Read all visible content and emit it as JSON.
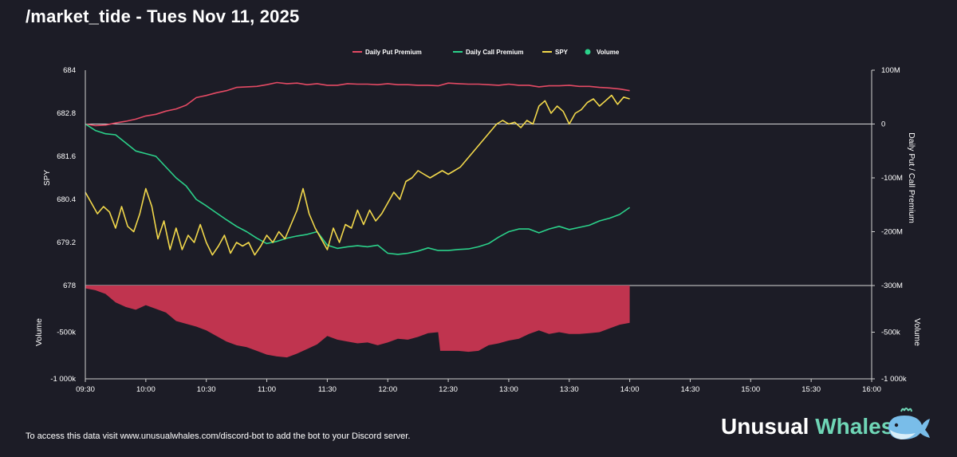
{
  "header": {
    "title": "/market_tide - Tues Nov 11, 2025"
  },
  "footer": {
    "text": "To access this data visit www.unusualwhales.com/discord-bot to add the bot to your Discord server."
  },
  "brand": {
    "word1": "Unusual",
    "word2": "Whales",
    "logo_icon": "whale-icon"
  },
  "colors": {
    "background": "#1c1c26",
    "put": "#e44a64",
    "call": "#2bd18a",
    "spy": "#f2d84b",
    "volume": "#c0344f",
    "zero_line": "#d7d7d7"
  },
  "chart_data": {
    "type": "line",
    "legend": {
      "placement": "top-center",
      "entries": [
        "Daily Put Premium",
        "Daily Call Premium",
        "SPY",
        "Volume"
      ]
    },
    "x_axis": {
      "range": [
        "09:30",
        "16:00"
      ],
      "ticks": [
        "09:30",
        "10:00",
        "10:30",
        "11:00",
        "11:30",
        "12:00",
        "12:30",
        "13:00",
        "13:30",
        "14:00",
        "14:30",
        "15:00",
        "15:30",
        "16:00"
      ]
    },
    "price_axis": {
      "label": "SPY",
      "range": [
        678,
        684
      ],
      "ticks": [
        "684",
        "682.8",
        "681.6",
        "680.4",
        "679.2",
        "678"
      ]
    },
    "premium_axis": {
      "label": "Daily Put / Call Premium",
      "range": [
        -300,
        100
      ],
      "unit": "M",
      "ticks": [
        "100M",
        "0",
        "-100M",
        "-200M",
        "-300M"
      ]
    },
    "volume_axis": {
      "label": "Volume",
      "range": [
        -1000000,
        0
      ],
      "ticks_left": [
        "-500k",
        "-1 000k"
      ],
      "ticks_right": [
        "-500k",
        "-1 000k"
      ]
    },
    "series": [
      {
        "name": "Daily Put Premium",
        "unit": "M",
        "points": [
          [
            "09:30",
            0
          ],
          [
            "09:35",
            -3
          ],
          [
            "09:40",
            -2
          ],
          [
            "09:45",
            2
          ],
          [
            "09:50",
            5
          ],
          [
            "09:55",
            9
          ],
          [
            "10:00",
            15
          ],
          [
            "10:05",
            18
          ],
          [
            "10:10",
            24
          ],
          [
            "10:15",
            28
          ],
          [
            "10:20",
            35
          ],
          [
            "10:25",
            49
          ],
          [
            "10:30",
            53
          ],
          [
            "10:35",
            58
          ],
          [
            "10:40",
            62
          ],
          [
            "10:45",
            68
          ],
          [
            "10:50",
            69
          ],
          [
            "10:55",
            70
          ],
          [
            "11:00",
            73
          ],
          [
            "11:05",
            77
          ],
          [
            "11:10",
            75
          ],
          [
            "11:15",
            76
          ],
          [
            "11:20",
            73
          ],
          [
            "11:25",
            75
          ],
          [
            "11:30",
            72
          ],
          [
            "11:35",
            72
          ],
          [
            "11:40",
            75
          ],
          [
            "11:45",
            74
          ],
          [
            "11:50",
            74
          ],
          [
            "11:55",
            73
          ],
          [
            "12:00",
            75
          ],
          [
            "12:05",
            73
          ],
          [
            "12:10",
            73
          ],
          [
            "12:15",
            72
          ],
          [
            "12:20",
            72
          ],
          [
            "12:25",
            71
          ],
          [
            "12:30",
            76
          ],
          [
            "12:35",
            75
          ],
          [
            "12:40",
            74
          ],
          [
            "12:45",
            74
          ],
          [
            "12:50",
            73
          ],
          [
            "12:55",
            72
          ],
          [
            "13:00",
            74
          ],
          [
            "13:05",
            72
          ],
          [
            "13:10",
            72
          ],
          [
            "13:15",
            69
          ],
          [
            "13:20",
            71
          ],
          [
            "13:25",
            71
          ],
          [
            "13:30",
            72
          ],
          [
            "13:35",
            70
          ],
          [
            "13:40",
            70
          ],
          [
            "13:45",
            68
          ],
          [
            "13:50",
            67
          ],
          [
            "13:55",
            65
          ],
          [
            "14:00",
            62
          ]
        ]
      },
      {
        "name": "Daily Call Premium",
        "unit": "M",
        "points": [
          [
            "09:30",
            0
          ],
          [
            "09:35",
            -12
          ],
          [
            "09:40",
            -18
          ],
          [
            "09:45",
            -20
          ],
          [
            "09:50",
            -35
          ],
          [
            "09:55",
            -50
          ],
          [
            "10:00",
            -55
          ],
          [
            "10:05",
            -60
          ],
          [
            "10:10",
            -80
          ],
          [
            "10:15",
            -100
          ],
          [
            "10:20",
            -115
          ],
          [
            "10:25",
            -140
          ],
          [
            "10:30",
            -152
          ],
          [
            "10:35",
            -165
          ],
          [
            "10:40",
            -178
          ],
          [
            "10:45",
            -190
          ],
          [
            "10:50",
            -200
          ],
          [
            "10:55",
            -212
          ],
          [
            "11:00",
            -222
          ],
          [
            "11:05",
            -218
          ],
          [
            "11:10",
            -212
          ],
          [
            "11:15",
            -208
          ],
          [
            "11:20",
            -205
          ],
          [
            "11:25",
            -200
          ],
          [
            "11:30",
            -225
          ],
          [
            "11:35",
            -231
          ],
          [
            "11:40",
            -228
          ],
          [
            "11:45",
            -226
          ],
          [
            "11:50",
            -228
          ],
          [
            "11:55",
            -225
          ],
          [
            "12:00",
            -240
          ],
          [
            "12:05",
            -242
          ],
          [
            "12:10",
            -240
          ],
          [
            "12:15",
            -236
          ],
          [
            "12:20",
            -230
          ],
          [
            "12:25",
            -235
          ],
          [
            "12:30",
            -235
          ],
          [
            "12:35",
            -233
          ],
          [
            "12:40",
            -232
          ],
          [
            "12:45",
            -228
          ],
          [
            "12:50",
            -222
          ],
          [
            "12:55",
            -210
          ],
          [
            "13:00",
            -200
          ],
          [
            "13:05",
            -195
          ],
          [
            "13:10",
            -195
          ],
          [
            "13:15",
            -202
          ],
          [
            "13:20",
            -195
          ],
          [
            "13:25",
            -190
          ],
          [
            "13:30",
            -196
          ],
          [
            "13:35",
            -192
          ],
          [
            "13:40",
            -188
          ],
          [
            "13:45",
            -180
          ],
          [
            "13:50",
            -175
          ],
          [
            "13:55",
            -168
          ],
          [
            "14:00",
            -155
          ]
        ]
      },
      {
        "name": "SPY",
        "points": [
          [
            "09:30",
            680.6
          ],
          [
            "09:33",
            680.3
          ],
          [
            "09:36",
            680.0
          ],
          [
            "09:39",
            680.2
          ],
          [
            "09:42",
            680.05
          ],
          [
            "09:45",
            679.6
          ],
          [
            "09:48",
            680.2
          ],
          [
            "09:51",
            679.65
          ],
          [
            "09:54",
            679.5
          ],
          [
            "09:57",
            680.0
          ],
          [
            "10:00",
            680.7
          ],
          [
            "10:03",
            680.2
          ],
          [
            "10:06",
            679.3
          ],
          [
            "10:09",
            679.8
          ],
          [
            "10:12",
            679.0
          ],
          [
            "10:15",
            679.6
          ],
          [
            "10:18",
            679.0
          ],
          [
            "10:21",
            679.4
          ],
          [
            "10:24",
            679.2
          ],
          [
            "10:27",
            679.7
          ],
          [
            "10:30",
            679.2
          ],
          [
            "10:33",
            678.85
          ],
          [
            "10:36",
            679.1
          ],
          [
            "10:39",
            679.4
          ],
          [
            "10:42",
            678.9
          ],
          [
            "10:45",
            679.2
          ],
          [
            "10:48",
            679.1
          ],
          [
            "10:51",
            679.2
          ],
          [
            "10:54",
            678.85
          ],
          [
            "10:57",
            679.1
          ],
          [
            "11:00",
            679.4
          ],
          [
            "11:03",
            679.2
          ],
          [
            "11:06",
            679.5
          ],
          [
            "11:09",
            679.3
          ],
          [
            "11:12",
            679.7
          ],
          [
            "11:15",
            680.1
          ],
          [
            "11:18",
            680.7
          ],
          [
            "11:21",
            680.0
          ],
          [
            "11:24",
            679.6
          ],
          [
            "11:27",
            679.3
          ],
          [
            "11:30",
            679.0
          ],
          [
            "11:33",
            679.6
          ],
          [
            "11:36",
            679.2
          ],
          [
            "11:39",
            679.7
          ],
          [
            "11:42",
            679.6
          ],
          [
            "11:45",
            680.1
          ],
          [
            "11:48",
            679.7
          ],
          [
            "11:51",
            680.1
          ],
          [
            "11:54",
            679.8
          ],
          [
            "11:57",
            680.0
          ],
          [
            "12:00",
            680.3
          ],
          [
            "12:03",
            680.6
          ],
          [
            "12:06",
            680.4
          ],
          [
            "12:09",
            680.9
          ],
          [
            "12:12",
            681.0
          ],
          [
            "12:15",
            681.2
          ],
          [
            "12:18",
            681.1
          ],
          [
            "12:21",
            681.0
          ],
          [
            "12:24",
            681.1
          ],
          [
            "12:27",
            681.2
          ],
          [
            "12:30",
            681.1
          ],
          [
            "12:33",
            681.2
          ],
          [
            "12:36",
            681.3
          ],
          [
            "12:39",
            681.5
          ],
          [
            "12:42",
            681.7
          ],
          [
            "12:45",
            681.9
          ],
          [
            "12:48",
            682.1
          ],
          [
            "12:51",
            682.3
          ],
          [
            "12:54",
            682.5
          ],
          [
            "12:57",
            682.6
          ],
          [
            "13:00",
            682.5
          ],
          [
            "13:03",
            682.55
          ],
          [
            "13:06",
            682.4
          ],
          [
            "13:09",
            682.6
          ],
          [
            "13:12",
            682.5
          ],
          [
            "13:15",
            683.0
          ],
          [
            "13:18",
            683.15
          ],
          [
            "13:21",
            682.8
          ],
          [
            "13:24",
            683.0
          ],
          [
            "13:27",
            682.85
          ],
          [
            "13:30",
            682.5
          ],
          [
            "13:33",
            682.8
          ],
          [
            "13:36",
            682.9
          ],
          [
            "13:39",
            683.1
          ],
          [
            "13:42",
            683.2
          ],
          [
            "13:45",
            683.0
          ],
          [
            "13:48",
            683.15
          ],
          [
            "13:51",
            683.3
          ],
          [
            "13:54",
            683.05
          ],
          [
            "13:57",
            683.25
          ],
          [
            "14:00",
            683.2
          ]
        ]
      },
      {
        "name": "Volume",
        "points": [
          [
            "09:30",
            -30000
          ],
          [
            "09:35",
            -50000
          ],
          [
            "09:40",
            -90000
          ],
          [
            "09:45",
            -180000
          ],
          [
            "09:50",
            -230000
          ],
          [
            "09:55",
            -260000
          ],
          [
            "10:00",
            -210000
          ],
          [
            "10:05",
            -250000
          ],
          [
            "10:10",
            -290000
          ],
          [
            "10:15",
            -380000
          ],
          [
            "10:20",
            -410000
          ],
          [
            "10:25",
            -440000
          ],
          [
            "10:30",
            -480000
          ],
          [
            "10:35",
            -540000
          ],
          [
            "10:40",
            -600000
          ],
          [
            "10:45",
            -640000
          ],
          [
            "10:50",
            -660000
          ],
          [
            "10:55",
            -700000
          ],
          [
            "11:00",
            -740000
          ],
          [
            "11:05",
            -760000
          ],
          [
            "11:10",
            -770000
          ],
          [
            "11:15",
            -730000
          ],
          [
            "11:20",
            -680000
          ],
          [
            "11:25",
            -630000
          ],
          [
            "11:30",
            -540000
          ],
          [
            "11:35",
            -580000
          ],
          [
            "11:40",
            -600000
          ],
          [
            "11:45",
            -620000
          ],
          [
            "11:50",
            -610000
          ],
          [
            "11:55",
            -640000
          ],
          [
            "12:00",
            -610000
          ],
          [
            "12:05",
            -570000
          ],
          [
            "12:10",
            -580000
          ],
          [
            "12:15",
            -550000
          ],
          [
            "12:20",
            -510000
          ],
          [
            "12:25",
            -500000
          ],
          [
            "12:26",
            -700000
          ],
          [
            "12:30",
            -700000
          ],
          [
            "12:35",
            -700000
          ],
          [
            "12:40",
            -710000
          ],
          [
            "12:45",
            -700000
          ],
          [
            "12:50",
            -640000
          ],
          [
            "12:55",
            -620000
          ],
          [
            "13:00",
            -590000
          ],
          [
            "13:05",
            -570000
          ],
          [
            "13:10",
            -520000
          ],
          [
            "13:15",
            -480000
          ],
          [
            "13:20",
            -520000
          ],
          [
            "13:25",
            -500000
          ],
          [
            "13:30",
            -520000
          ],
          [
            "13:35",
            -520000
          ],
          [
            "13:40",
            -510000
          ],
          [
            "13:45",
            -500000
          ],
          [
            "13:50",
            -460000
          ],
          [
            "13:55",
            -420000
          ],
          [
            "14:00",
            -400000
          ]
        ]
      }
    ]
  }
}
